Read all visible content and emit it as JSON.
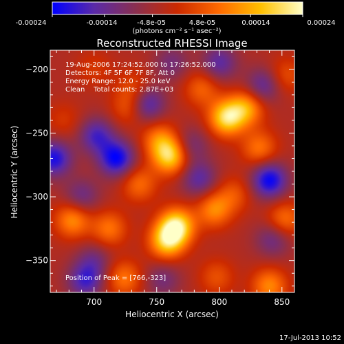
{
  "colorbar": {
    "tick_labels": [
      "-0.00024",
      "-0.00014",
      "-4.8e-05",
      "4.8e-05",
      "0.00014",
      "0.00024"
    ],
    "tick_values": [
      -0.00024,
      -0.00014,
      -4.8e-05,
      4.8e-05,
      0.00014,
      0.00024
    ],
    "range": [
      -0.00024,
      0.00024
    ],
    "units_label": "(photons cm⁻² s⁻¹ asec⁻²)",
    "colormap": [
      "#0000ff",
      "#5a2aa8",
      "#8a2f4f",
      "#cc2a00",
      "#ff6a00",
      "#ffc000",
      "#ffffc8"
    ]
  },
  "info": {
    "line1": "19-Aug-2006 17:24:52.000 to 17:26:52.000",
    "line2": "Detectors: 4F 5F 6F 7F 8F, Att 0",
    "line3": "Energy Range: 12.0 - 25.0 keV",
    "line4": "Clean    Total counts: 2.87E+03",
    "peak": "Position of Peak = [766,-323]"
  },
  "footer": {
    "timestamp": "17-Jul-2013 10:52"
  },
  "chart_data": {
    "type": "heatmap",
    "title": "Reconstructed RHESSI Image",
    "xlabel": "Heliocentric X (arcsec)",
    "ylabel": "Heliocentric Y (arcsec)",
    "xlim": [
      665,
      860
    ],
    "ylim": [
      -375,
      -185
    ],
    "x_ticks": [
      700,
      750,
      800,
      850
    ],
    "y_ticks": [
      -350,
      -300,
      -250,
      -200
    ],
    "x_tick_labels": [
      "700",
      "750",
      "800",
      "850"
    ],
    "y_tick_labels": [
      "−350",
      "−300",
      "−250",
      "−200"
    ],
    "peak_position": [
      766,
      -323
    ],
    "sources": [
      {
        "x": 766,
        "y": -323,
        "value": 0.00024
      },
      {
        "x": 758,
        "y": -335,
        "value": 0.0002
      },
      {
        "x": 761,
        "y": -268,
        "value": 0.00022
      },
      {
        "x": 752,
        "y": -255,
        "value": 0.00012
      },
      {
        "x": 806,
        "y": -238,
        "value": 0.00023
      },
      {
        "x": 822,
        "y": -230,
        "value": 0.00016
      },
      {
        "x": 786,
        "y": -215,
        "value": 0.0001
      },
      {
        "x": 832,
        "y": -262,
        "value": 0.00012
      },
      {
        "x": 796,
        "y": -310,
        "value": 0.00014
      },
      {
        "x": 812,
        "y": -298,
        "value": 8e-05
      },
      {
        "x": 683,
        "y": -318,
        "value": 0.00015
      },
      {
        "x": 712,
        "y": -325,
        "value": 0.00012
      },
      {
        "x": 728,
        "y": -230,
        "value": 9e-05
      },
      {
        "x": 676,
        "y": -240,
        "value": 5e-05
      },
      {
        "x": 736,
        "y": -290,
        "value": 0.00011
      },
      {
        "x": 724,
        "y": -364,
        "value": 0.00012
      },
      {
        "x": 798,
        "y": -363,
        "value": 8e-05
      },
      {
        "x": 840,
        "y": -370,
        "value": 0.00014
      },
      {
        "x": 852,
        "y": -318,
        "value": 0.00012
      },
      {
        "x": 853,
        "y": -205,
        "value": 8e-05
      },
      {
        "x": 732,
        "y": -214,
        "value": 7e-05
      },
      {
        "x": 700,
        "y": -200,
        "value": 5e-05
      },
      {
        "x": 742,
        "y": -227,
        "value": -0.00015
      },
      {
        "x": 718,
        "y": -270,
        "value": -0.0002
      },
      {
        "x": 702,
        "y": -252,
        "value": -0.00014
      },
      {
        "x": 690,
        "y": -300,
        "value": -0.0001
      },
      {
        "x": 668,
        "y": -270,
        "value": -0.00018
      },
      {
        "x": 777,
        "y": -260,
        "value": -9e-05
      },
      {
        "x": 784,
        "y": -286,
        "value": -0.00012
      },
      {
        "x": 840,
        "y": -287,
        "value": -0.0002
      },
      {
        "x": 800,
        "y": -195,
        "value": -0.00012
      },
      {
        "x": 835,
        "y": -213,
        "value": -0.00012
      },
      {
        "x": 762,
        "y": -195,
        "value": -8e-05
      },
      {
        "x": 693,
        "y": -366,
        "value": -0.00014
      },
      {
        "x": 755,
        "y": -365,
        "value": -8e-05
      },
      {
        "x": 843,
        "y": -333,
        "value": -0.0001
      },
      {
        "x": 700,
        "y": -350,
        "value": -8e-05
      }
    ]
  }
}
